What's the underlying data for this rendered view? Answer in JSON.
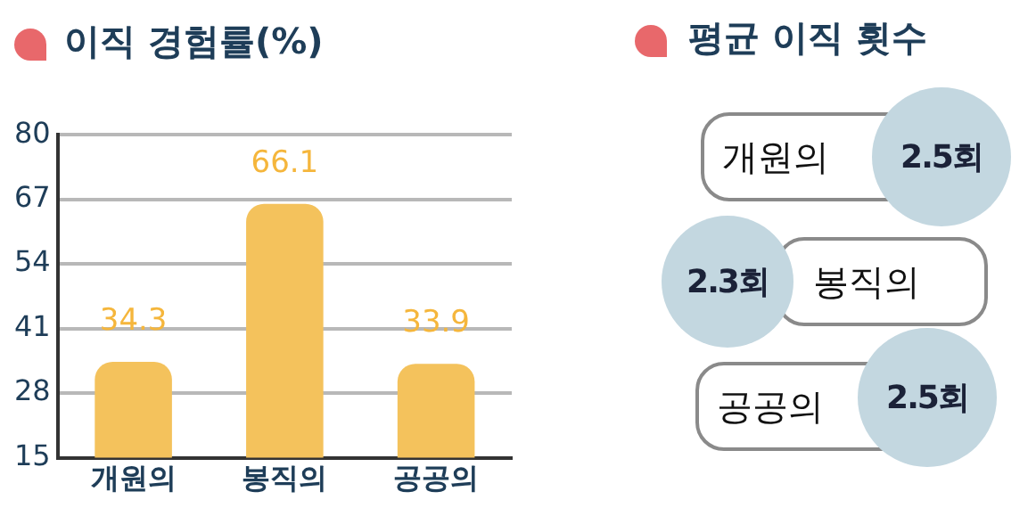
{
  "chart_data": [
    {
      "type": "bar",
      "title": "이직 경험률(%)",
      "categories": [
        "개원의",
        "봉직의",
        "공공의"
      ],
      "values": [
        34.3,
        66.1,
        33.9
      ],
      "color": "#f4c25c",
      "ylim": [
        15,
        80
      ],
      "yticks": [
        15,
        28,
        41,
        54,
        67,
        80
      ],
      "grid": "y",
      "data_labels": true
    },
    {
      "type": "other",
      "title": "평균 이직 횟수",
      "categories": [
        "개원의",
        "봉직의",
        "공공의"
      ],
      "values": [
        2.5,
        2.3,
        2.5
      ],
      "value_labels": [
        "2.5회",
        "2.3회",
        "2.5회"
      ]
    }
  ]
}
